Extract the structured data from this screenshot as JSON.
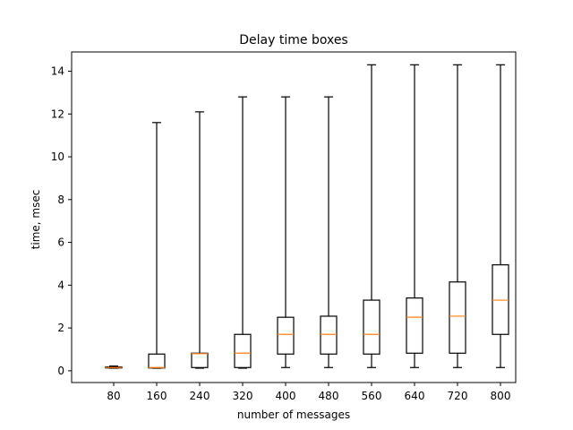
{
  "chart_data": {
    "type": "box",
    "title": "Delay time boxes",
    "xlabel": "number of messages",
    "ylabel": "time, msec",
    "ylim": [
      -0.55,
      14.9
    ],
    "yticks": [
      0,
      2,
      4,
      6,
      8,
      10,
      12,
      14
    ],
    "grid": false,
    "categories": [
      "80",
      "160",
      "240",
      "320",
      "400",
      "480",
      "560",
      "640",
      "720",
      "800"
    ],
    "boxes": [
      {
        "category": "80",
        "whisker_low": 0.12,
        "q1": 0.13,
        "median": 0.15,
        "q3": 0.18,
        "whisker_high": 0.22
      },
      {
        "category": "160",
        "whisker_low": 0.12,
        "q1": 0.13,
        "median": 0.15,
        "q3": 0.78,
        "whisker_high": 11.6
      },
      {
        "category": "240",
        "whisker_low": 0.12,
        "q1": 0.15,
        "median": 0.8,
        "q3": 0.82,
        "whisker_high": 12.1
      },
      {
        "category": "320",
        "whisker_low": 0.12,
        "q1": 0.15,
        "median": 0.82,
        "q3": 1.7,
        "whisker_high": 12.8
      },
      {
        "category": "400",
        "whisker_low": 0.15,
        "q1": 0.78,
        "median": 1.7,
        "q3": 2.5,
        "whisker_high": 12.8
      },
      {
        "category": "480",
        "whisker_low": 0.15,
        "q1": 0.78,
        "median": 1.7,
        "q3": 2.55,
        "whisker_high": 12.8
      },
      {
        "category": "560",
        "whisker_low": 0.15,
        "q1": 0.78,
        "median": 1.7,
        "q3": 3.3,
        "whisker_high": 14.3
      },
      {
        "category": "640",
        "whisker_low": 0.15,
        "q1": 0.82,
        "median": 2.5,
        "q3": 3.4,
        "whisker_high": 14.3
      },
      {
        "category": "720",
        "whisker_low": 0.15,
        "q1": 0.82,
        "median": 2.55,
        "q3": 4.15,
        "whisker_high": 14.3
      },
      {
        "category": "800",
        "whisker_low": 0.15,
        "q1": 1.7,
        "median": 3.3,
        "q3": 4.95,
        "whisker_high": 14.3
      }
    ],
    "colors": {
      "box": "#000000",
      "median": "#ff7f0e",
      "axes": "#000000"
    }
  }
}
